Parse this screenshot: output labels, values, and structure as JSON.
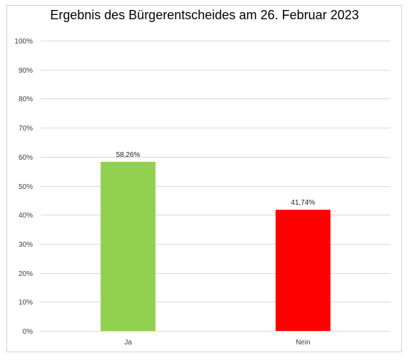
{
  "chart_data": {
    "type": "bar",
    "title": "Ergebnis des Bürgerentscheides am 26. Februar 2023",
    "xlabel": "",
    "ylabel": "",
    "categories": [
      "Ja",
      "Nein"
    ],
    "values": [
      58.26,
      41.74
    ],
    "data_labels": [
      "58,26%",
      "41,74%"
    ],
    "colors": [
      "#92d050",
      "#ff0000"
    ],
    "ylim": [
      0,
      100
    ],
    "yticks": [
      0,
      10,
      20,
      30,
      40,
      50,
      60,
      70,
      80,
      90,
      100
    ],
    "ytick_labels": [
      "0%",
      "10%",
      "20%",
      "30%",
      "40%",
      "50%",
      "60%",
      "70%",
      "80%",
      "90%",
      "100%"
    ],
    "grid": true,
    "legend": "none"
  }
}
